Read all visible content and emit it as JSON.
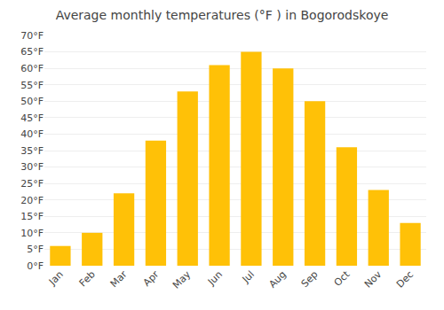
{
  "chart_data": {
    "type": "bar",
    "title": "Average monthly temperatures (°F ) in Bogorodskoye",
    "categories": [
      "Jan",
      "Feb",
      "Mar",
      "Apr",
      "May",
      "Jun",
      "Jul",
      "Aug",
      "Sep",
      "Oct",
      "Nov",
      "Dec"
    ],
    "values": [
      6,
      10,
      22,
      38,
      53,
      61,
      65,
      60,
      50,
      36,
      23,
      13
    ],
    "color": "#FFC107",
    "ylim": [
      0,
      70
    ],
    "yticks": [
      {
        "value": 0,
        "label": "0°F"
      },
      {
        "value": 5,
        "label": "5°F"
      },
      {
        "value": 10,
        "label": "10°F"
      },
      {
        "value": 15,
        "label": "15°F"
      },
      {
        "value": 20,
        "label": "20°F"
      },
      {
        "value": 25,
        "label": "25°F"
      },
      {
        "value": 30,
        "label": "30°F"
      },
      {
        "value": 35,
        "label": "35°F"
      },
      {
        "value": 40,
        "label": "40°F"
      },
      {
        "value": 45,
        "label": "45°F"
      },
      {
        "value": 50,
        "label": "50°F"
      },
      {
        "value": 55,
        "label": "55°F"
      },
      {
        "value": 60,
        "label": "60°F"
      },
      {
        "value": 65,
        "label": "65°F"
      },
      {
        "value": 70,
        "label": "70°F"
      }
    ],
    "grid": true
  }
}
